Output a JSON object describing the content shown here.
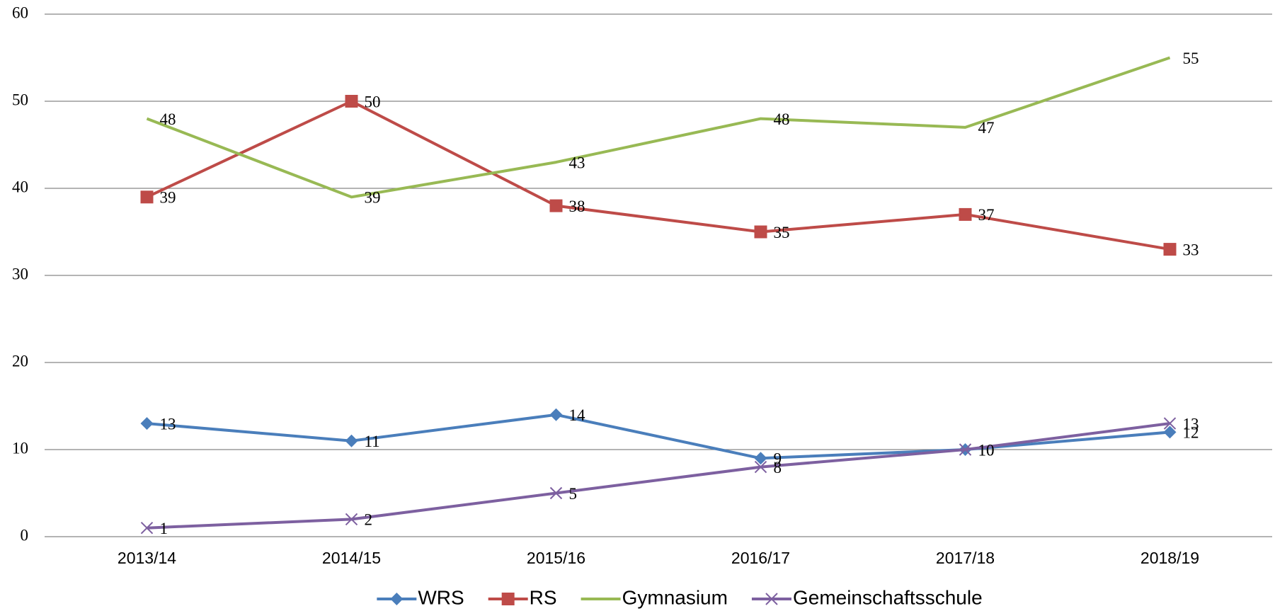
{
  "chart_data": {
    "type": "line",
    "categories": [
      "2013/14",
      "2014/15",
      "2015/16",
      "2016/17",
      "2017/18",
      "2018/19"
    ],
    "series": [
      {
        "name": "WRS",
        "color": "#4a7ebb",
        "marker": "diamond",
        "values": [
          13,
          11,
          14,
          9,
          10,
          12
        ]
      },
      {
        "name": "RS",
        "color": "#be4b48",
        "marker": "square",
        "values": [
          39,
          50,
          38,
          35,
          37,
          33
        ]
      },
      {
        "name": "Gymnasium",
        "color": "#98b954",
        "marker": "none",
        "values": [
          48,
          39,
          43,
          48,
          47,
          55
        ]
      },
      {
        "name": "Gemeinschaftsschule",
        "color": "#7d60a0",
        "marker": "x",
        "values": [
          1,
          2,
          5,
          8,
          10,
          13
        ]
      }
    ],
    "ylim": [
      0,
      60
    ],
    "yticks": [
      0,
      10,
      20,
      30,
      40,
      50,
      60
    ],
    "grid": true,
    "legend": "bottom",
    "data_labels": true
  }
}
